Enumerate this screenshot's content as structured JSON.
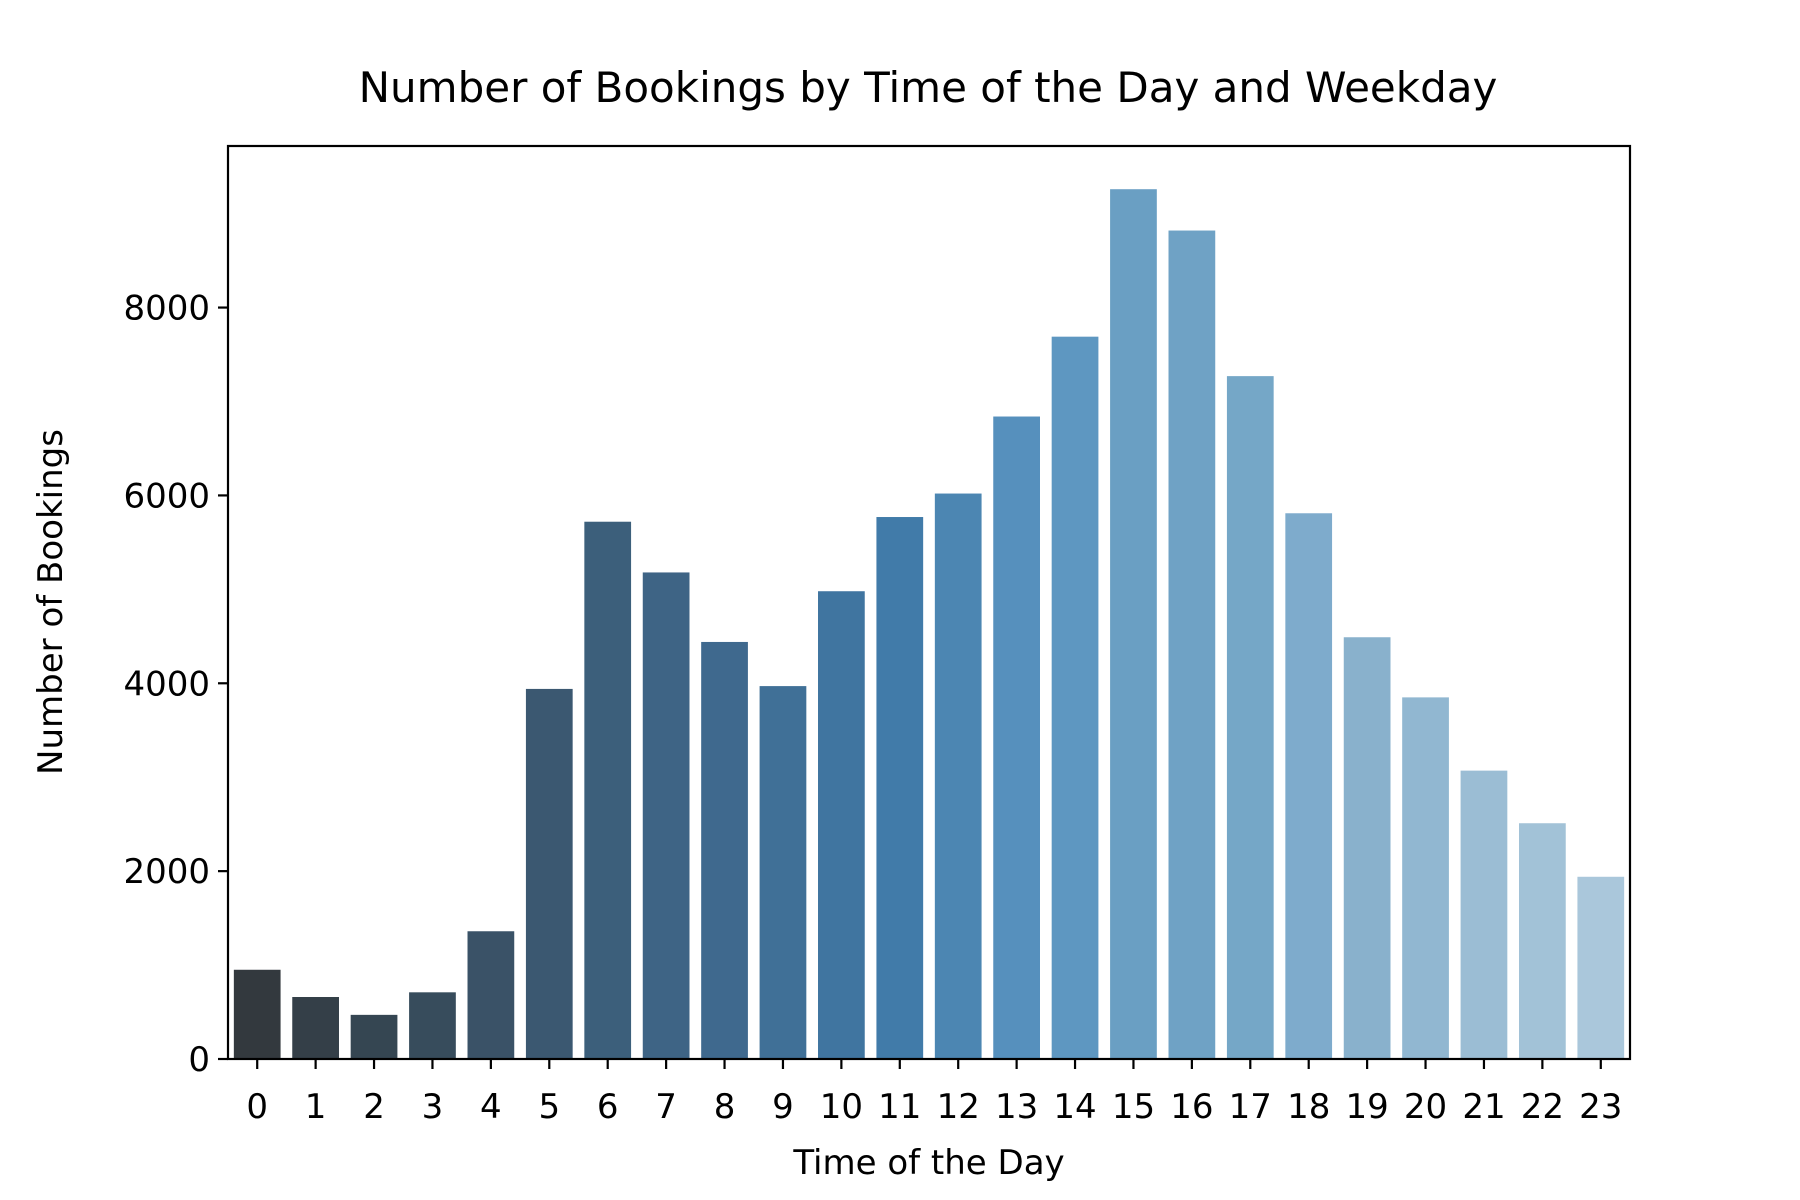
{
  "chart_data": {
    "type": "bar",
    "title": "Number of Bookings by Time of the Day and Weekday",
    "xlabel": "Time of the Day",
    "ylabel": "Number of Bookings",
    "categories": [
      "0",
      "1",
      "2",
      "3",
      "4",
      "5",
      "6",
      "7",
      "8",
      "9",
      "10",
      "11",
      "12",
      "13",
      "14",
      "15",
      "16",
      "17",
      "18",
      "19",
      "20",
      "21",
      "22",
      "23"
    ],
    "values": [
      950,
      660,
      470,
      710,
      1360,
      3940,
      5720,
      5180,
      4440,
      3970,
      4980,
      5770,
      6020,
      6840,
      7690,
      9260,
      8820,
      7270,
      5810,
      4490,
      3850,
      3070,
      2510,
      1940
    ],
    "y_ticks": [
      0,
      2000,
      4000,
      6000,
      8000
    ],
    "ylim": [
      0,
      9720
    ],
    "grid": false,
    "legend": "none",
    "colors": [
      "#33393e",
      "#343f48",
      "#354652",
      "#374c5c",
      "#3a5267",
      "#3b5871",
      "#3c5f7b",
      "#3e6485",
      "#3f698e",
      "#407097",
      "#4075a0",
      "#417ba9",
      "#4c86b2",
      "#5690bd",
      "#5e97c1",
      "#6a9fc3",
      "#6fa2c5",
      "#75a7c7",
      "#7eabcc",
      "#89b1cc",
      "#91b7d1",
      "#9bbdd4",
      "#a2c2d7",
      "#aac7db"
    ]
  }
}
